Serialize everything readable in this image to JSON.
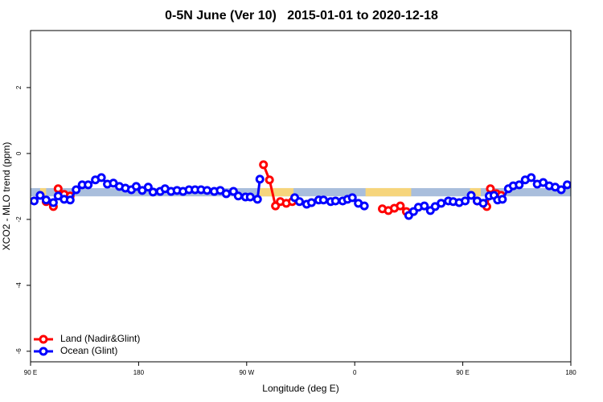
{
  "chart_data": {
    "type": "line",
    "title": "0-5N June (Ver 10)   2015-01-01 to 2020-12-18",
    "xlabel": "Longitude (deg E)",
    "ylabel": "XCO2 - MLO trend (ppm)",
    "xlim": [
      90,
      540
    ],
    "ylim": [
      -6.32,
      3.73
    ],
    "xticks": [
      {
        "value": 90,
        "label": "90 E"
      },
      {
        "value": 180,
        "label": "180"
      },
      {
        "value": 270,
        "label": "90 W"
      },
      {
        "value": 360,
        "label": "0"
      },
      {
        "value": 450,
        "label": "90 E"
      },
      {
        "value": 540,
        "label": "180"
      }
    ],
    "yticks": [
      2,
      0,
      -2,
      -4,
      -6
    ],
    "legend": "bottom-left",
    "band": {
      "range": [
        -1.3,
        -1.05
      ],
      "color": "#a9bedc",
      "highlight_color": "#f6d57c",
      "highlights": [
        [
          98,
          103
        ],
        [
          280,
          309
        ],
        [
          369,
          407
        ],
        [
          456,
          465
        ]
      ]
    },
    "series": [
      {
        "name": "Land (Nadir&Glint)",
        "color": "#ff0000",
        "x": [
          103,
          109,
          113,
          118,
          123,
          200,
          284,
          289,
          294,
          298,
          303,
          308,
          350,
          383,
          388,
          393,
          398,
          403,
          440,
          462,
          470,
          473,
          478,
          482
        ],
        "values": [
          -1.46,
          -1.61,
          -1.07,
          -1.24,
          -1.29,
          null,
          -0.34,
          -0.8,
          -1.59,
          -1.46,
          -1.51,
          -1.46,
          null,
          -1.68,
          -1.73,
          -1.66,
          -1.59,
          -1.76,
          null,
          -1.44,
          -1.61,
          -1.07,
          -1.22,
          -1.27
        ]
      },
      {
        "name": "Ocean (Glint)",
        "color": "#0000ff",
        "x": [
          93,
          98,
          103,
          109,
          113,
          118,
          123,
          128,
          133,
          138,
          144,
          149,
          154,
          159,
          164,
          169,
          174,
          178,
          183,
          188,
          192,
          198,
          202,
          207,
          212,
          217,
          222,
          227,
          232,
          237,
          243,
          248,
          253,
          259,
          263,
          269,
          273,
          279,
          281,
          300,
          310,
          314,
          320,
          324,
          330,
          334,
          340,
          344,
          350,
          354,
          358,
          363,
          368,
          390,
          405,
          409,
          413,
          418,
          423,
          427,
          432,
          438,
          442,
          447,
          452,
          457,
          462,
          467,
          472,
          476,
          479,
          483,
          488,
          492,
          497,
          502,
          507,
          512,
          517,
          522,
          527,
          532,
          537
        ],
        "values": [
          -1.44,
          -1.27,
          -1.41,
          -1.49,
          -1.29,
          -1.39,
          -1.41,
          -1.1,
          -0.95,
          -0.95,
          -0.8,
          -0.73,
          -0.93,
          -0.9,
          -1.0,
          -1.05,
          -1.1,
          -1.0,
          -1.12,
          -1.02,
          -1.17,
          -1.15,
          -1.07,
          -1.15,
          -1.12,
          -1.15,
          -1.1,
          -1.1,
          -1.1,
          -1.12,
          -1.15,
          -1.12,
          -1.22,
          -1.15,
          -1.29,
          -1.32,
          -1.32,
          -1.39,
          -0.78,
          null,
          -1.34,
          -1.46,
          -1.54,
          -1.49,
          -1.41,
          -1.41,
          -1.46,
          -1.44,
          -1.44,
          -1.39,
          -1.34,
          -1.51,
          -1.59,
          null,
          -1.88,
          -1.76,
          -1.63,
          -1.59,
          -1.73,
          -1.61,
          -1.51,
          -1.44,
          -1.46,
          -1.49,
          -1.44,
          -1.27,
          -1.44,
          -1.51,
          -1.29,
          -1.27,
          -1.41,
          -1.39,
          -1.07,
          -0.98,
          -0.95,
          -0.8,
          -0.73,
          -0.93,
          -0.88,
          -0.98,
          -1.02,
          -1.1,
          -0.95
        ]
      }
    ]
  }
}
